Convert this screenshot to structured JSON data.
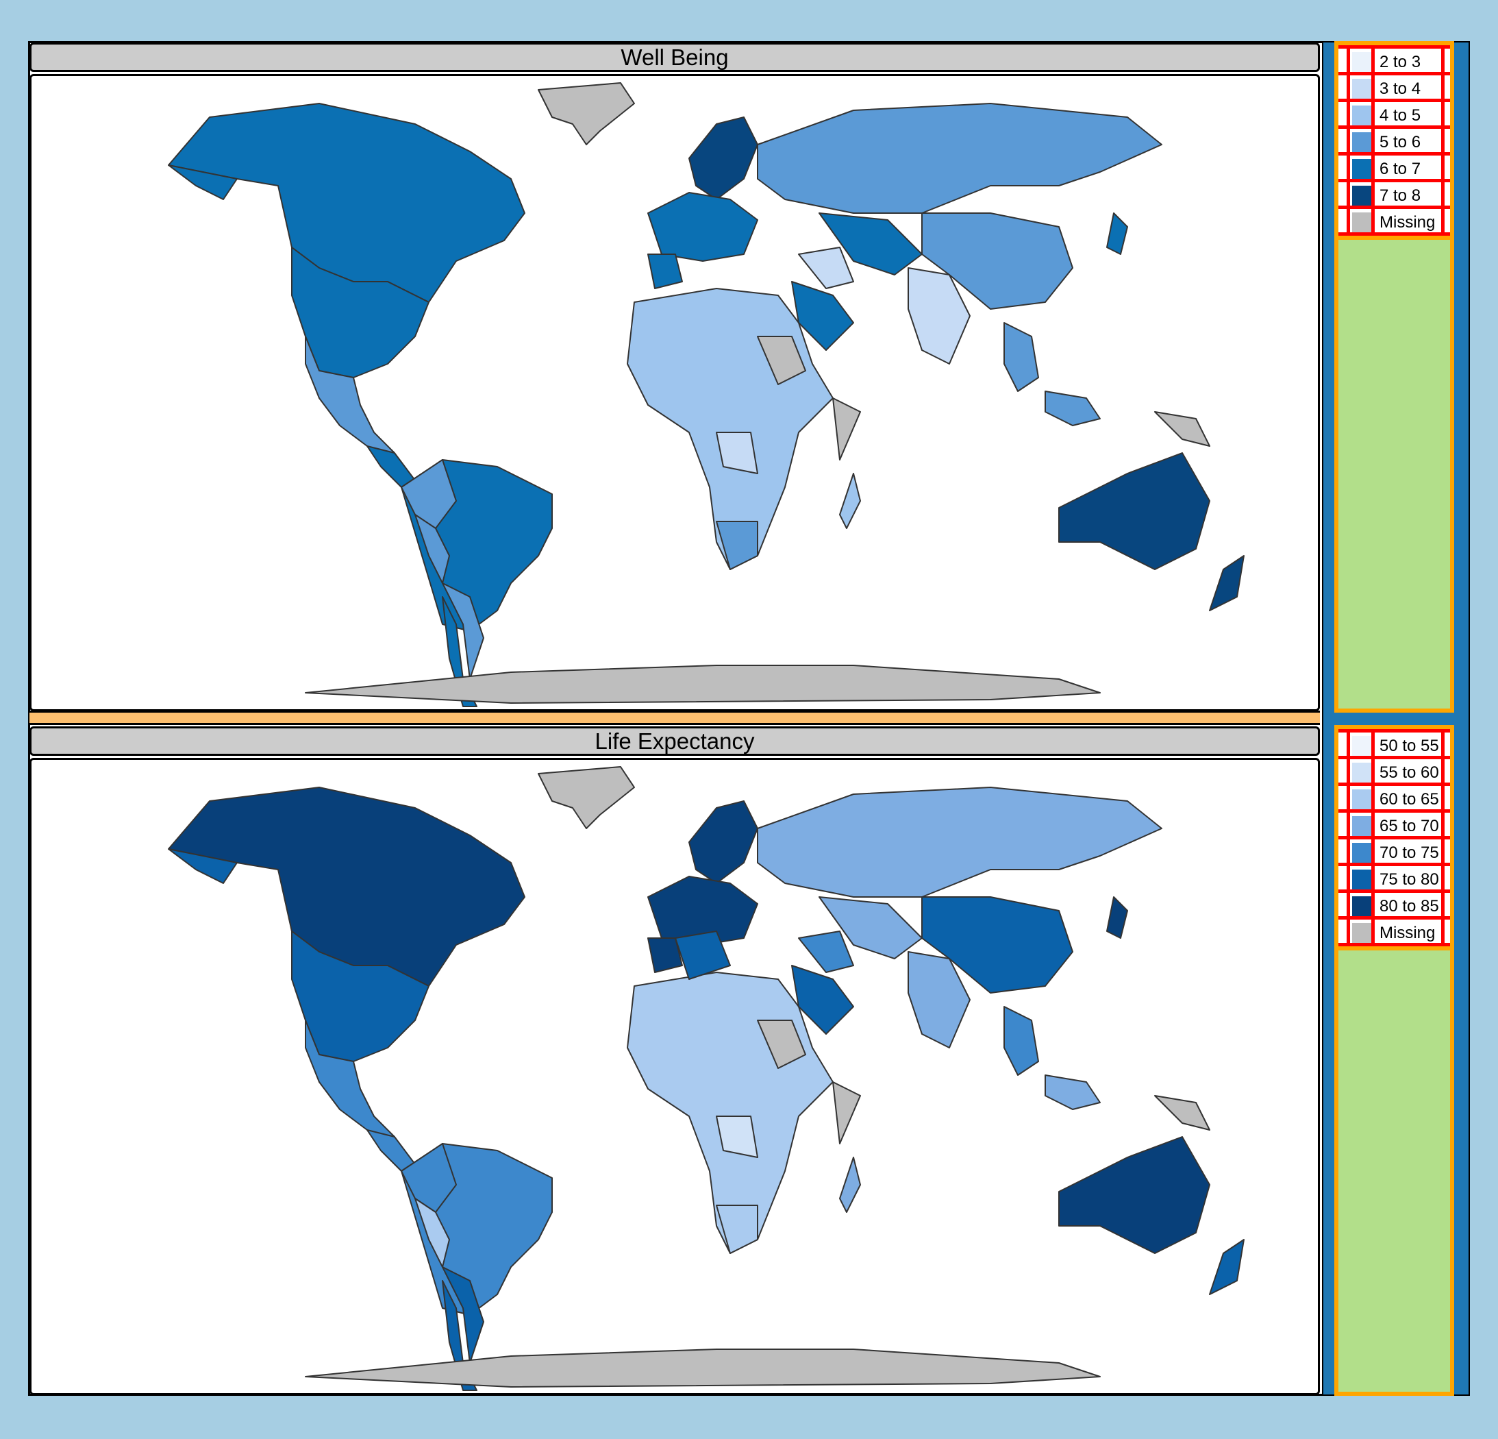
{
  "panels": [
    {
      "title": "Well Being",
      "legend": [
        {
          "label": "2 to 3",
          "color": "#eaf2fb"
        },
        {
          "label": "3 to 4",
          "color": "#c6dbf5"
        },
        {
          "label": "4 to 5",
          "color": "#9ec5ee"
        },
        {
          "label": "5 to 6",
          "color": "#5b9ad6"
        },
        {
          "label": "6 to 7",
          "color": "#0b70b3"
        },
        {
          "label": "7 to 8",
          "color": "#08467f"
        },
        {
          "label": "Missing",
          "color": "#bebebe"
        }
      ]
    },
    {
      "title": "Life Expectancy",
      "legend": [
        {
          "label": "50 to 55",
          "color": "#eef4fc"
        },
        {
          "label": "55 to 60",
          "color": "#d0e2f7"
        },
        {
          "label": "60 to 65",
          "color": "#aacbf0"
        },
        {
          "label": "65 to 70",
          "color": "#7eade2"
        },
        {
          "label": "70 to 75",
          "color": "#3d88cc"
        },
        {
          "label": "75 to 80",
          "color": "#0b62aa"
        },
        {
          "label": "80 to 85",
          "color": "#08407a"
        },
        {
          "label": "Missing",
          "color": "#bebebe"
        }
      ]
    }
  ],
  "colors": {
    "background": "#a6cee3",
    "strip": "#1f78b4",
    "legend_frame": "#ffa500",
    "legend_fill": "#b2df8a",
    "legend_grid": "#ff0000",
    "panel_gap": "#fdbf6f",
    "missing": "#bebebe"
  }
}
